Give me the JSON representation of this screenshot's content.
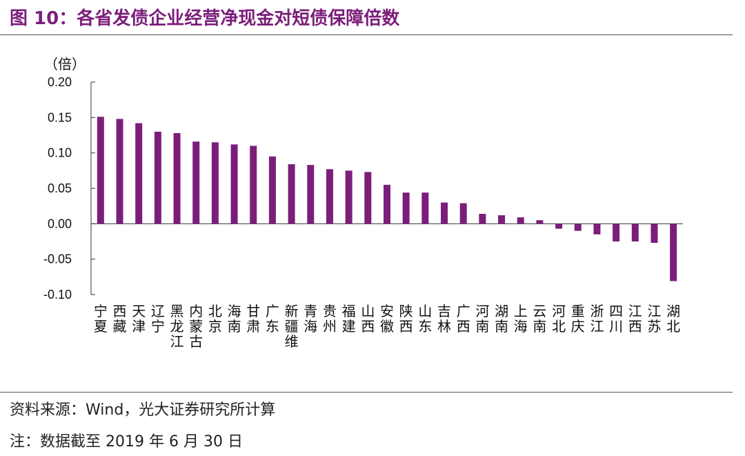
{
  "figure": {
    "title": "图 10：各省发债企业经营净现金对短债保障倍数",
    "source": "资料来源：Wind，光大证券研究所计算",
    "note": "注：数据截至 2019 年 6 月 30 日"
  },
  "chart_data": {
    "type": "bar",
    "unit_label": "（倍）",
    "ylim": [
      -0.1,
      0.2
    ],
    "yticks": [
      0.2,
      0.15,
      0.1,
      0.05,
      0.0,
      -0.05,
      -0.1
    ],
    "ytick_labels": [
      "0.20",
      "0.15",
      "0.10",
      "0.05",
      "0.00",
      "-0.05",
      "-0.10"
    ],
    "categories": [
      "宁夏",
      "西藏",
      "天津",
      "辽宁",
      "黑龙江",
      "内蒙古",
      "北京",
      "海南",
      "甘肃",
      "广东",
      "新疆维",
      "青海",
      "贵州",
      "福建",
      "山西",
      "安徽",
      "陕西",
      "山东",
      "吉林",
      "广西",
      "河南",
      "湖南",
      "上海",
      "云南",
      "河北",
      "重庆",
      "浙江",
      "四川",
      "江西",
      "江苏",
      "湖北"
    ],
    "values": [
      0.151,
      0.148,
      0.142,
      0.13,
      0.128,
      0.116,
      0.115,
      0.112,
      0.11,
      0.095,
      0.084,
      0.083,
      0.077,
      0.075,
      0.073,
      0.055,
      0.044,
      0.044,
      0.03,
      0.029,
      0.014,
      0.012,
      0.009,
      0.005,
      -0.007,
      -0.01,
      -0.015,
      -0.025,
      -0.025,
      -0.027,
      -0.081
    ],
    "bar_color": "#7b1e7a",
    "grid": false,
    "legend": "none"
  }
}
